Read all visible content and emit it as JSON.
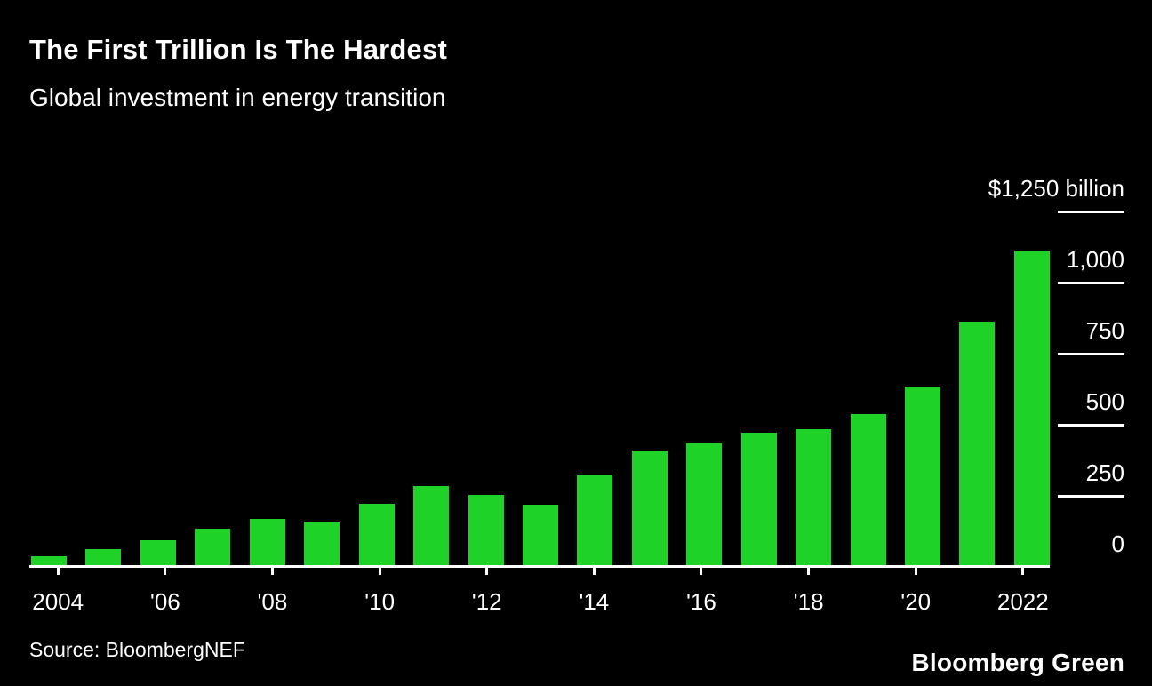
{
  "header": {
    "title": "The First Trillion Is The Hardest",
    "subtitle": "Global investment in energy transition"
  },
  "footer": {
    "source": "Source: BloombergNEF",
    "brand": "Bloomberg Green"
  },
  "colors": {
    "background": "#000000",
    "bar": "#1ed228",
    "axis": "#ffffff",
    "text": "#ffffff"
  },
  "chart_data": {
    "type": "bar",
    "title": "The First Trillion Is The Hardest",
    "subtitle": "Global investment in energy transition",
    "unit": "billion USD",
    "categories": [
      2004,
      2005,
      2006,
      2007,
      2008,
      2009,
      2010,
      2011,
      2012,
      2013,
      2014,
      2015,
      2016,
      2017,
      2018,
      2019,
      2020,
      2021,
      2022
    ],
    "values": [
      33,
      60,
      90,
      130,
      165,
      155,
      220,
      280,
      250,
      215,
      320,
      405,
      430,
      470,
      480,
      535,
      630,
      860,
      1110
    ],
    "x_tick_labels": [
      "2004",
      "'06",
      "'08",
      "'10",
      "'12",
      "'14",
      "'16",
      "'18",
      "'20",
      "2022"
    ],
    "y_ticks": [
      {
        "value": 1250,
        "label": "$1,250 billion"
      },
      {
        "value": 1000,
        "label": "1,000"
      },
      {
        "value": 750,
        "label": "750"
      },
      {
        "value": 500,
        "label": "500"
      },
      {
        "value": 250,
        "label": "250"
      },
      {
        "value": 0,
        "label": "0"
      }
    ],
    "ylim": [
      0,
      1250
    ],
    "xlabel": "",
    "ylabel": "",
    "legend": "none",
    "grid": "right-side tick dashes only",
    "bar_color": "#1ed228",
    "background": "#000000"
  }
}
